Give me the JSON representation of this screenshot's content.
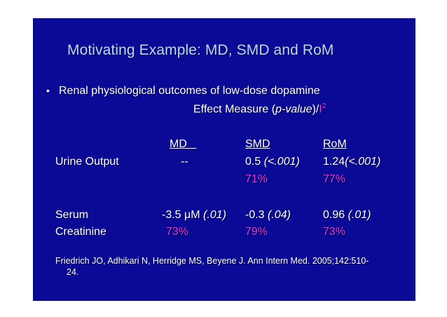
{
  "slide": {
    "title": "Motivating Example:  MD, SMD and RoM",
    "bullet_char": "•",
    "bullet_text": "Renal physiological outcomes of low-dose dopamine",
    "effect_measure": {
      "prefix": "Effect Measure (",
      "italic": "p-value",
      "middle": ")/",
      "i2": "I",
      "sup": "2"
    },
    "columns": {
      "md": "MD   ",
      "smd": "SMD",
      "rom": "RoM"
    },
    "urine": {
      "label": "Urine Output",
      "md": "--",
      "smd_val": "0.5 ",
      "smd_p": "(<.001)",
      "rom_val": "1.24",
      "rom_p": "(<.001)",
      "smd_i2": "71%",
      "rom_i2": "77%"
    },
    "serum": {
      "label1": "Serum",
      "label2": "Creatinine",
      "md_val": "-3.5 ",
      "md_unit": "μM",
      "md_p": "(.01)",
      "smd_val": "-0.3 ",
      "smd_p": "(.04)",
      "rom_val": "0.96 ",
      "rom_p": "(.01)",
      "md_i2": "73%",
      "smd_i2": "79%",
      "rom_i2": "73%"
    },
    "citation": {
      "line1": "Friedrich JO, Adhikari N, Herridge MS, Beyene J. Ann Intern Med. 2005;142:510-",
      "line2": "24."
    },
    "colors": {
      "background": "#0a0a96",
      "title": "#b8d8f4",
      "text": "#ffffff",
      "i2_values": "#e040e0"
    }
  }
}
